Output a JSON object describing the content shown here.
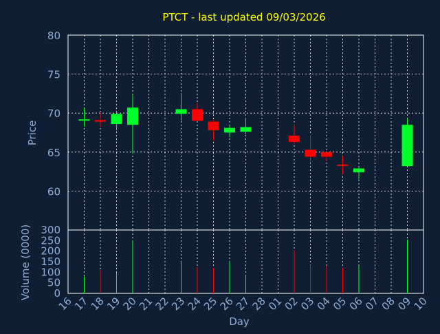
{
  "chart_data": {
    "type": "candlestick",
    "title": "PTCT - last updated 09/03/2026",
    "colors": {
      "background": "#0f1e33",
      "grid": "#ffffff",
      "axis_text": "#8eaed4",
      "title": "#ffff00",
      "up": "#00ff2a",
      "down": "#ff0000"
    },
    "price_panel": {
      "ylabel": "Price",
      "ylim": [
        55,
        80
      ],
      "yticks": [
        "80",
        "75",
        "70",
        "65",
        "60"
      ]
    },
    "volume_panel": {
      "ylabel": "Volume (0000)",
      "ylim": [
        0,
        300
      ],
      "yticks": [
        "300",
        "250",
        "200",
        "150",
        "100",
        "50",
        "0"
      ]
    },
    "xlabel": "Day",
    "x_ticks": [
      "16",
      "17",
      "18",
      "19",
      "20",
      "21",
      "22",
      "23",
      "24",
      "25",
      "26",
      "27",
      "28",
      "01",
      "02",
      "03",
      "04",
      "05",
      "06",
      "07",
      "08",
      "09",
      "10"
    ],
    "candles": [
      {
        "day": "17",
        "open": 69.1,
        "high": 70.6,
        "low": 68.3,
        "close": 69.2,
        "volume": 80
      },
      {
        "day": "18",
        "open": 69.1,
        "high": 70.1,
        "low": 68.2,
        "close": 68.9,
        "volume": 110
      },
      {
        "day": "19",
        "open": 68.6,
        "high": 70.2,
        "low": 67.8,
        "close": 69.9,
        "volume": 100
      },
      {
        "day": "20",
        "open": 68.5,
        "high": 72.4,
        "low": 64.8,
        "close": 70.7,
        "volume": 250
      },
      {
        "day": "23",
        "open": 69.9,
        "high": 72.6,
        "low": 69.0,
        "close": 70.5,
        "volume": 150
      },
      {
        "day": "24",
        "open": 70.5,
        "high": 71.3,
        "low": 69.0,
        "close": 69.0,
        "volume": 125
      },
      {
        "day": "25",
        "open": 68.9,
        "high": 69.1,
        "low": 66.5,
        "close": 67.8,
        "volume": 120
      },
      {
        "day": "26",
        "open": 67.5,
        "high": 68.4,
        "low": 66.9,
        "close": 68.1,
        "volume": 150
      },
      {
        "day": "27",
        "open": 67.6,
        "high": 69.4,
        "low": 67.3,
        "close": 68.2,
        "volume": 85
      },
      {
        "day": "02",
        "open": 67.1,
        "high": 68.5,
        "low": 66.0,
        "close": 66.3,
        "volume": 205
      },
      {
        "day": "03",
        "open": 65.3,
        "high": 67.2,
        "low": 63.6,
        "close": 64.4,
        "volume": 135
      },
      {
        "day": "04",
        "open": 65.0,
        "high": 65.0,
        "low": 63.8,
        "close": 64.4,
        "volume": 130
      },
      {
        "day": "05",
        "open": 63.4,
        "high": 64.5,
        "low": 62.2,
        "close": 63.3,
        "volume": 120
      },
      {
        "day": "06",
        "open": 62.4,
        "high": 63.0,
        "low": 61.5,
        "close": 62.9,
        "volume": 130
      },
      {
        "day": "09",
        "open": 63.2,
        "high": 69.3,
        "low": 63.2,
        "close": 68.5,
        "volume": 255
      }
    ]
  }
}
